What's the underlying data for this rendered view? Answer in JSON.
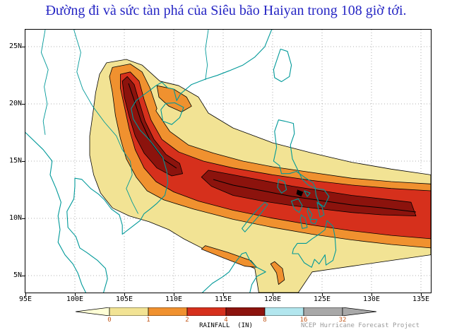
{
  "title": {
    "text": "Đường đi và sức tàn phá của Siêu bão Haiyan trong 108 giờ tới."
  },
  "map": {
    "lat_ticks": [
      "25N",
      "20N",
      "15N",
      "10N",
      "5N"
    ],
    "lon_ticks": [
      "95E",
      "100E",
      "105E",
      "110E",
      "115E",
      "120E",
      "125E",
      "130E",
      "135E"
    ]
  },
  "legend": {
    "label": "RAINFALL  (IN)",
    "tick_labels": [
      "0",
      "1",
      "2",
      "4",
      "8",
      "16",
      "32"
    ],
    "tick_color": "#C2571A",
    "segments": [
      {
        "range": "lt0",
        "color": "#FFFFD6",
        "arrow": "left"
      },
      {
        "range": "0-1",
        "color": "#F2E394"
      },
      {
        "range": "1-2",
        "color": "#F0912F"
      },
      {
        "range": "2-4",
        "color": "#D6301C"
      },
      {
        "range": "4-8",
        "color": "#8C130D"
      },
      {
        "range": "8-16",
        "color": "#B2E6EE"
      },
      {
        "range": "16-32",
        "color": "#A8A8A8"
      },
      {
        "range": "gt32",
        "color": "#A8A8A8",
        "arrow": "right"
      }
    ]
  },
  "credit": "NCEP Hurricane Forecast Project",
  "colors": {
    "title": "#2626C4",
    "coastline": "#009999",
    "grid": "#999999"
  }
}
